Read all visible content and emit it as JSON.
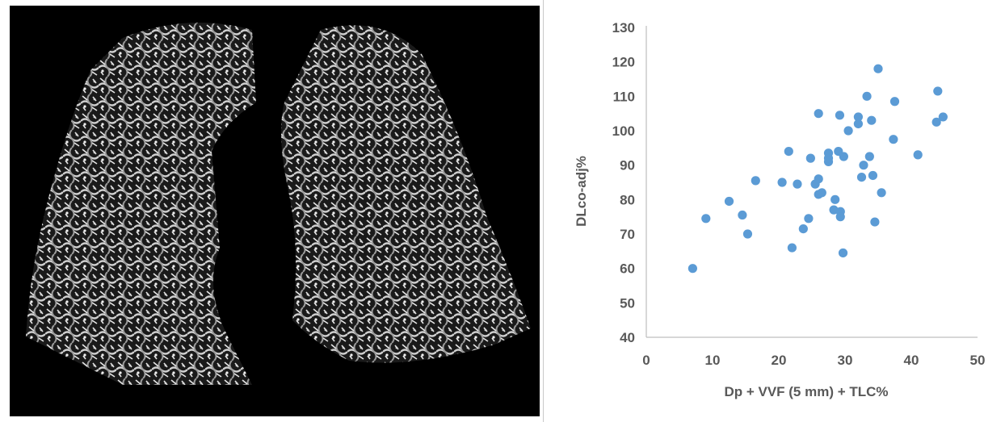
{
  "image_panel": {
    "subject": "3D rendering of lung vasculature"
  },
  "chart_data": {
    "type": "scatter",
    "title": "",
    "xlabel": "Dp + VVF (5 mm) + TLC%",
    "ylabel": "DLco-adj%",
    "xlim": [
      0,
      50
    ],
    "ylim": [
      40,
      130
    ],
    "x_ticks": [
      0,
      10,
      20,
      30,
      40,
      50
    ],
    "y_ticks": [
      40,
      50,
      60,
      70,
      80,
      90,
      100,
      110,
      120,
      130
    ],
    "grid": false,
    "marker_color": "#5b9bd5",
    "series": [
      {
        "points": [
          [
            7,
            60
          ],
          [
            9,
            74.5
          ],
          [
            12.5,
            79.5
          ],
          [
            14.5,
            75.5
          ],
          [
            15.3,
            70
          ],
          [
            16.5,
            85.5
          ],
          [
            20.5,
            85
          ],
          [
            21.5,
            94
          ],
          [
            22,
            66
          ],
          [
            22.8,
            84.5
          ],
          [
            23.7,
            71.5
          ],
          [
            24.5,
            74.5
          ],
          [
            24.8,
            92
          ],
          [
            25.5,
            84.5
          ],
          [
            26,
            105
          ],
          [
            26,
            86
          ],
          [
            26,
            81.5
          ],
          [
            26.5,
            82
          ],
          [
            27.5,
            93.5
          ],
          [
            27.5,
            91
          ],
          [
            27.5,
            92
          ],
          [
            28.3,
            77
          ],
          [
            28.5,
            80
          ],
          [
            29,
            94
          ],
          [
            29.2,
            104.5
          ],
          [
            29.3,
            76.5
          ],
          [
            29.3,
            75
          ],
          [
            29.7,
            64.5
          ],
          [
            29.8,
            92.5
          ],
          [
            30.5,
            100
          ],
          [
            32,
            104
          ],
          [
            32,
            102
          ],
          [
            32.5,
            86.5
          ],
          [
            32.8,
            90
          ],
          [
            33.3,
            110
          ],
          [
            33.7,
            92.5
          ],
          [
            34,
            103
          ],
          [
            34.2,
            87
          ],
          [
            34.5,
            73.5
          ],
          [
            35,
            118
          ],
          [
            35.5,
            82
          ],
          [
            37.3,
            97.5
          ],
          [
            37.5,
            108.5
          ],
          [
            41,
            93
          ],
          [
            43.8,
            102.5
          ],
          [
            44,
            111.5
          ],
          [
            44.8,
            104
          ]
        ]
      }
    ]
  }
}
